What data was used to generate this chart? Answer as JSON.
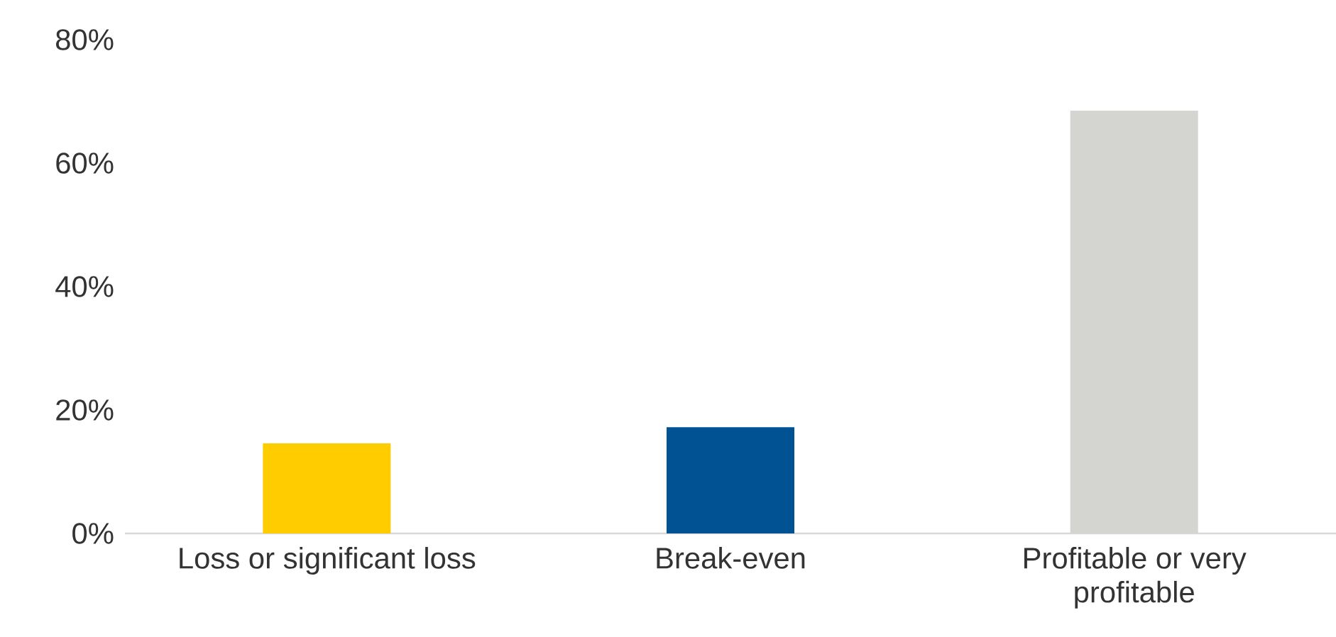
{
  "chart_data": {
    "type": "bar",
    "categories": [
      "Loss or significant loss",
      "Break-even",
      "Profitable or very profitable"
    ],
    "values": [
      14.6,
      17.2,
      68.5
    ],
    "colors": [
      "#ffcc00",
      "#005293",
      "#d4d5d0"
    ],
    "ylim": [
      0,
      80
    ],
    "yticks": [
      {
        "value": 0,
        "label": "0%"
      },
      {
        "value": 20,
        "label": "20%"
      },
      {
        "value": 40,
        "label": "40%"
      },
      {
        "value": 60,
        "label": "60%"
      },
      {
        "value": 80,
        "label": "80%"
      }
    ],
    "grid": false
  }
}
